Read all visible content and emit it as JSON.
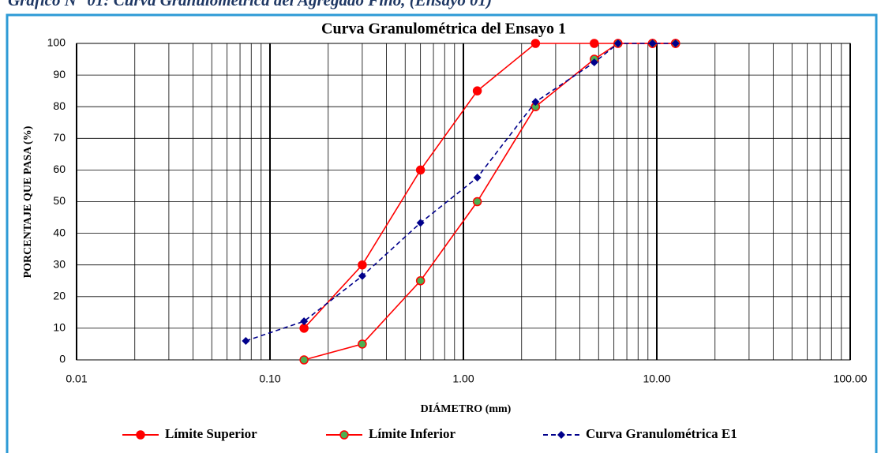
{
  "chart_data": {
    "type": "line",
    "caption": "Gráfico N° 01: Curva Granulométrica del Agregado Fino, (Ensayo 01)",
    "title": "Curva Granulométrica del Ensayo 1",
    "xlabel": "DIÁMETRO (mm)",
    "ylabel": "PORCENTAJE QUE PASA (%)",
    "xscale": "log",
    "xlim": [
      0.01,
      100
    ],
    "xticks": [
      {
        "value": 0.01,
        "label": "0.01"
      },
      {
        "value": 0.1,
        "label": "0.10"
      },
      {
        "value": 1,
        "label": "1.00"
      },
      {
        "value": 10,
        "label": "10.00"
      },
      {
        "value": 100,
        "label": "100.00"
      }
    ],
    "ylim": [
      0,
      100
    ],
    "yticks": [
      0,
      10,
      20,
      30,
      40,
      50,
      60,
      70,
      80,
      90,
      100
    ],
    "grid": true,
    "legend": "bottom",
    "series": [
      {
        "name": "Límite Superior",
        "color": "#ff0000",
        "marker": "circle",
        "dash": false,
        "x": [
          0.15,
          0.3,
          0.6,
          1.18,
          2.36,
          4.75,
          9.5,
          12.5
        ],
        "values": [
          10,
          30,
          60,
          85,
          100,
          100,
          100,
          100
        ]
      },
      {
        "name": "Límite Inferior",
        "color": "#ff0000",
        "markerfill": "#4caf50",
        "marker": "circle",
        "dash": false,
        "x": [
          0.15,
          0.3,
          0.6,
          1.18,
          2.36,
          4.75,
          6.3,
          9.5,
          12.5
        ],
        "values": [
          0,
          5,
          25,
          50,
          80,
          95,
          100,
          100,
          100
        ]
      },
      {
        "name": "Curva Granulométrica E1",
        "color": "#00008b",
        "marker": "diamond",
        "dash": true,
        "x": [
          0.075,
          0.15,
          0.3,
          0.6,
          1.18,
          2.36,
          4.75,
          6.3,
          9.5,
          12.5
        ],
        "values": [
          6,
          12.2,
          26.5,
          43.3,
          57.6,
          81.5,
          94,
          100,
          100,
          100
        ]
      }
    ]
  }
}
